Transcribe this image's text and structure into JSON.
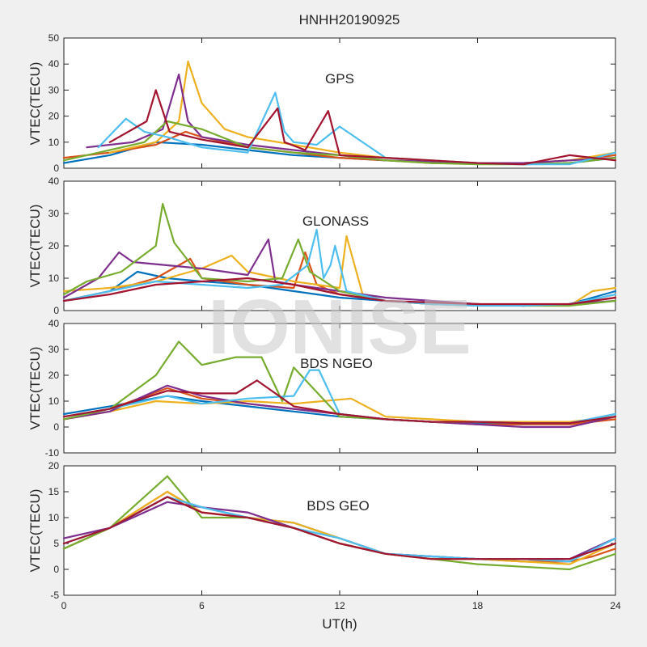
{
  "figure_title": "HNHH20190925",
  "watermark_text": "IONISE",
  "colors": [
    "#0072BD",
    "#D95319",
    "#EDB120",
    "#7E2F8E",
    "#77AC30",
    "#4DBEEE",
    "#A2142F"
  ],
  "chart_data": [
    {
      "type": "line",
      "annotation": "GPS",
      "ylabel": "VTEC(TECU)",
      "xlim": [
        0,
        24
      ],
      "ylim": [
        0,
        50
      ],
      "yticks": [
        0,
        10,
        20,
        30,
        40,
        50
      ],
      "xticks": [
        0,
        6,
        12,
        18,
        24
      ],
      "show_xticklabels": false,
      "series": [
        {
          "color": "#0072BD",
          "x": [
            0,
            2,
            4,
            6,
            8,
            10,
            12,
            14,
            16,
            18,
            20,
            22,
            24
          ],
          "y": [
            2,
            5,
            10,
            9,
            7,
            5,
            4,
            3,
            2.5,
            2,
            1.5,
            2,
            4
          ]
        },
        {
          "color": "#D95319",
          "x": [
            0,
            2,
            4,
            5.3,
            6,
            8,
            10,
            12,
            14,
            16,
            18,
            20,
            22,
            24
          ],
          "y": [
            4,
            6,
            9,
            14,
            12,
            8,
            6,
            4,
            3,
            2,
            2,
            2,
            3,
            5
          ]
        },
        {
          "color": "#EDB120",
          "x": [
            2,
            4,
            5.0,
            5.4,
            6,
            7,
            8,
            10,
            12,
            14,
            16,
            18,
            20,
            22,
            24
          ],
          "y": [
            6,
            10,
            18,
            41,
            25,
            15,
            12,
            9,
            6,
            4,
            3,
            2,
            2,
            3,
            6
          ]
        },
        {
          "color": "#7E2F8E",
          "x": [
            1,
            3,
            4.3,
            5.0,
            5.4,
            6,
            8,
            10,
            12,
            14,
            16,
            18,
            20,
            22,
            24
          ],
          "y": [
            8,
            10,
            15,
            36,
            18,
            12,
            9,
            7,
            5,
            3,
            2.5,
            2,
            2,
            3,
            4
          ]
        },
        {
          "color": "#77AC30",
          "x": [
            0,
            2,
            3.5,
            4.5,
            6,
            8,
            10,
            12,
            14,
            16,
            18,
            20,
            22,
            24
          ],
          "y": [
            3,
            7,
            10,
            18,
            15,
            8,
            6,
            5,
            3,
            2,
            1.5,
            1.5,
            2,
            4
          ]
        },
        {
          "color": "#4DBEEE",
          "x": [
            1.5,
            2.7,
            3.5,
            4.5,
            6,
            8,
            9.2,
            9.6,
            10,
            11,
            12,
            14,
            16,
            18,
            20,
            22,
            24
          ],
          "y": [
            8,
            19,
            14,
            12,
            8,
            6,
            29,
            14,
            10,
            9,
            16,
            4,
            3,
            2,
            1.5,
            1.5,
            6
          ]
        },
        {
          "color": "#A2142F",
          "x": [
            2,
            3.6,
            4.0,
            4.6,
            6,
            8,
            9.3,
            9.6,
            10.5,
            11.5,
            12,
            14,
            16,
            18,
            20,
            22,
            24
          ],
          "y": [
            10,
            18,
            30,
            14,
            11,
            8,
            23,
            10,
            7,
            22,
            5,
            4,
            3,
            2,
            1.5,
            5,
            3
          ]
        }
      ]
    },
    {
      "type": "line",
      "annotation": "GLONASS",
      "ylabel": "VTEC(TECU)",
      "xlim": [
        0,
        24
      ],
      "ylim": [
        0,
        40
      ],
      "yticks": [
        0,
        10,
        20,
        30,
        40
      ],
      "xticks": [
        0,
        6,
        12,
        18,
        24
      ],
      "show_xticklabels": false,
      "series": [
        {
          "color": "#0072BD",
          "x": [
            0,
            2,
            3.2,
            4.5,
            6,
            8,
            10,
            12,
            14,
            16,
            18,
            20,
            22,
            24
          ],
          "y": [
            3,
            6,
            12,
            10,
            9,
            8,
            6,
            4,
            3,
            2,
            2,
            1.5,
            2,
            6
          ]
        },
        {
          "color": "#D95319",
          "x": [
            0,
            2,
            4,
            5.5,
            6,
            8,
            10,
            10.5,
            11,
            12,
            14,
            16,
            18,
            20,
            22,
            24
          ],
          "y": [
            3,
            6,
            10,
            16,
            10,
            8,
            7,
            18,
            8,
            5,
            3,
            2,
            1.5,
            1.5,
            2,
            4
          ]
        },
        {
          "color": "#EDB120",
          "x": [
            0,
            2,
            4,
            6,
            7.3,
            8,
            10,
            12,
            12.3,
            13,
            14,
            16,
            18,
            20,
            22,
            23,
            24
          ],
          "y": [
            6,
            7,
            9,
            13,
            17,
            12,
            9,
            7,
            23,
            5,
            3,
            2,
            2,
            1.5,
            1.5,
            6,
            7
          ]
        },
        {
          "color": "#7E2F8E",
          "x": [
            0,
            1.5,
            2.4,
            3,
            4.5,
            6,
            8,
            8.9,
            9.2,
            10,
            12,
            14,
            16,
            18,
            20,
            22,
            24
          ],
          "y": [
            4,
            10,
            18,
            15,
            14,
            13,
            11,
            22,
            9,
            8,
            6,
            4,
            3,
            2,
            1.5,
            2,
            3
          ]
        },
        {
          "color": "#77AC30",
          "x": [
            0,
            1,
            2.5,
            4.0,
            4.3,
            4.8,
            6,
            8,
            9.5,
            10.2,
            10.7,
            12,
            14,
            16,
            18,
            20,
            22,
            24
          ],
          "y": [
            5,
            9,
            12,
            20,
            33,
            21,
            10,
            9,
            10,
            22,
            12,
            6,
            3,
            2,
            2,
            1.5,
            1.5,
            3
          ]
        },
        {
          "color": "#4DBEEE",
          "x": [
            0,
            2,
            4,
            6,
            8,
            9.5,
            10.6,
            11.0,
            11.3,
            11.6,
            11.8,
            12.3,
            14,
            16,
            18,
            20,
            22,
            24
          ],
          "y": [
            3,
            6,
            9,
            8,
            7,
            8,
            14,
            25,
            10,
            14,
            20,
            6,
            3,
            2,
            1.5,
            1.5,
            2,
            5
          ]
        },
        {
          "color": "#A2142F",
          "x": [
            0,
            2,
            4,
            6,
            8,
            10,
            12,
            14,
            16,
            18,
            20,
            22,
            24
          ],
          "y": [
            3,
            5,
            8,
            9,
            10,
            8,
            5,
            3,
            2.5,
            2,
            2,
            2,
            4
          ]
        }
      ]
    },
    {
      "type": "line",
      "annotation": "BDS NGEO",
      "ylabel": "VTEC(TECU)",
      "xlim": [
        0,
        24
      ],
      "ylim": [
        -10,
        40
      ],
      "yticks": [
        -10,
        0,
        10,
        20,
        30,
        40
      ],
      "xticks": [
        0,
        6,
        12,
        18,
        24
      ],
      "show_xticklabels": false,
      "series": [
        {
          "color": "#0072BD",
          "x": [
            0,
            2,
            4.5,
            6,
            8,
            10,
            12,
            14,
            16,
            18,
            20,
            22,
            24
          ],
          "y": [
            5,
            8,
            12,
            10,
            8,
            6,
            4,
            3,
            2,
            1.5,
            1,
            1.5,
            5
          ]
        },
        {
          "color": "#D95319",
          "x": [
            0,
            2,
            4.5,
            6,
            8,
            10,
            12,
            14,
            16,
            18,
            20,
            22,
            24
          ],
          "y": [
            4,
            7,
            15,
            11,
            9,
            7,
            5,
            3,
            2,
            1,
            1,
            1,
            3
          ]
        },
        {
          "color": "#EDB120",
          "x": [
            0,
            2,
            4,
            6,
            8,
            10,
            12.5,
            14,
            16,
            18,
            20,
            22,
            24
          ],
          "y": [
            3,
            6,
            10,
            9,
            10,
            9,
            11,
            4,
            3,
            2,
            2,
            2,
            4
          ]
        },
        {
          "color": "#7E2F8E",
          "x": [
            0,
            2,
            4.5,
            6,
            8,
            10,
            12,
            14,
            16,
            18,
            20,
            22,
            24
          ],
          "y": [
            3,
            6,
            16,
            12,
            9,
            7,
            5,
            3,
            2,
            1,
            0,
            0,
            4
          ]
        },
        {
          "color": "#77AC30",
          "x": [
            0,
            2,
            4.0,
            5.0,
            6,
            7.5,
            8.6,
            9.5,
            10.0,
            12,
            14,
            16,
            18,
            20,
            22,
            24
          ],
          "y": [
            3,
            7,
            20,
            33,
            24,
            27,
            27,
            10,
            23,
            4,
            3,
            2,
            2,
            1.5,
            1.5,
            4
          ]
        },
        {
          "color": "#4DBEEE",
          "x": [
            0,
            2,
            4.5,
            6,
            8,
            10,
            10.7,
            11.1,
            12,
            14,
            16,
            18,
            20,
            22,
            24
          ],
          "y": [
            4,
            7,
            12,
            9,
            11,
            12,
            22,
            22,
            5,
            3,
            2,
            2,
            1.5,
            1.5,
            5
          ]
        },
        {
          "color": "#A2142F",
          "x": [
            0,
            2,
            4.5,
            6,
            7.5,
            8.4,
            10,
            12,
            14,
            16,
            18,
            20,
            22,
            24
          ],
          "y": [
            4,
            7,
            14,
            13,
            13,
            18,
            8,
            5,
            3,
            2,
            2,
            1.5,
            1.5,
            4
          ]
        }
      ]
    },
    {
      "type": "line",
      "annotation": "BDS GEO",
      "ylabel": "VTEC(TECU)",
      "xlim": [
        0,
        24
      ],
      "ylim": [
        -5,
        20
      ],
      "yticks": [
        -5,
        0,
        5,
        10,
        15,
        20
      ],
      "xticks": [
        0,
        6,
        12,
        18,
        24
      ],
      "xticklabels": [
        "0",
        "6",
        "12",
        "18",
        "24"
      ],
      "show_xticklabels": true,
      "xlabel": "UT(h)",
      "series": [
        {
          "color": "#0072BD",
          "x": [
            0,
            2,
            4.5,
            6,
            8,
            10,
            12,
            14,
            16,
            18,
            20,
            22,
            23,
            24
          ],
          "y": [
            4,
            8,
            14,
            12,
            10,
            9,
            6,
            3,
            2.5,
            2,
            2,
            1.5,
            4,
            6
          ]
        },
        {
          "color": "#D95319",
          "x": [
            0,
            2,
            4.5,
            6,
            8,
            10,
            12,
            14,
            16,
            18,
            20,
            22,
            23,
            24
          ],
          "y": [
            4,
            8,
            15,
            11,
            10,
            8,
            5,
            3,
            2,
            2,
            1.5,
            1.5,
            2.5,
            4
          ]
        },
        {
          "color": "#EDB120",
          "x": [
            0,
            2,
            4.5,
            6,
            8,
            10,
            12,
            14,
            16,
            18,
            20,
            22,
            23,
            24
          ],
          "y": [
            4,
            8,
            15,
            11,
            10,
            9,
            6,
            3,
            2,
            2,
            1.5,
            1,
            3,
            5
          ]
        },
        {
          "color": "#7E2F8E",
          "x": [
            0,
            2,
            4.5,
            6,
            8,
            10,
            12,
            14,
            16,
            18,
            20,
            22,
            23,
            24
          ],
          "y": [
            6,
            8,
            13,
            12,
            11,
            8,
            5,
            3,
            2.5,
            2,
            2,
            2,
            4,
            6
          ]
        },
        {
          "color": "#77AC30",
          "x": [
            0,
            2,
            4.5,
            6,
            8,
            10,
            12,
            14,
            16,
            18,
            20,
            22,
            23,
            24
          ],
          "y": [
            4,
            8,
            18,
            10,
            10,
            8,
            5,
            3,
            2,
            1,
            0.5,
            0,
            1.5,
            3
          ]
        },
        {
          "color": "#4DBEEE",
          "x": [
            0,
            2,
            4.5,
            6,
            8,
            10,
            12,
            14,
            16,
            18,
            20,
            22,
            24
          ],
          "y": [
            5,
            8,
            14,
            12,
            10,
            8,
            6,
            3,
            2.5,
            2,
            2,
            1.5,
            6
          ]
        },
        {
          "color": "#A2142F",
          "x": [
            0,
            2,
            4.5,
            6,
            8,
            10,
            12,
            14,
            16,
            18,
            20,
            22,
            24
          ],
          "y": [
            5,
            8,
            14,
            11,
            10,
            8,
            5,
            3,
            2,
            2,
            2,
            2,
            5
          ]
        }
      ]
    }
  ]
}
